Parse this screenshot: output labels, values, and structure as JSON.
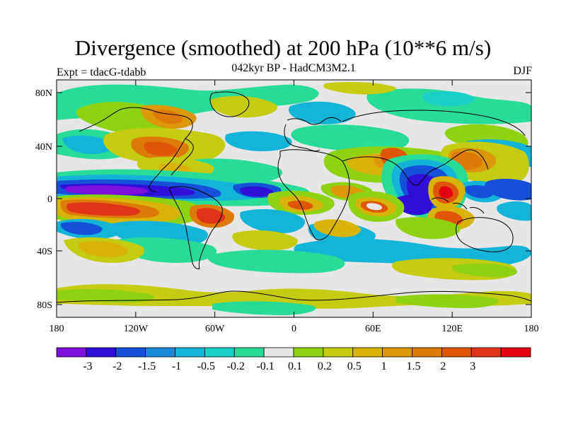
{
  "title": "Divergence (smoothed) at 200 hPa (10**6 m/s)",
  "subtitle": "042kyr BP - HadCM3M2.1",
  "left_label": "Expt = tdacG-tdabb",
  "right_label": "DJF",
  "axes": {
    "lon_ticks": [
      "180",
      "120W",
      "60W",
      "0",
      "60E",
      "120E",
      "180"
    ],
    "lat_ticks": [
      "80N",
      "40N",
      "0",
      "40S",
      "80S"
    ]
  },
  "colorbar": {
    "colors": [
      "#7d0fd8",
      "#3010d8",
      "#1450d8",
      "#1a8ad6",
      "#14b4d8",
      "#18d0c8",
      "#28dc98",
      "#e6e6e6",
      "#8ed212",
      "#c4cc10",
      "#d8b408",
      "#dc9808",
      "#de7a08",
      "#e05608",
      "#e03418",
      "#e00010"
    ],
    "labels": [
      "-3",
      "-2",
      "-1.5",
      "-1",
      "-0.5",
      "-0.2",
      "-0.1",
      "0.1",
      "0.2",
      "0.5",
      "1",
      "1.5",
      "2",
      "3"
    ]
  },
  "map_colors": {
    "neutral": "#e6e6e6",
    "v_strong_neg": "#7d0fd8",
    "strong_neg": "#3010d8",
    "mid_neg": "#1450d8",
    "neg": "#1a8ad6",
    "light_neg": "#14b4d8",
    "teal": "#18d0c8",
    "weak_neg": "#28dc98",
    "weak_pos": "#8ed212",
    "light_pos": "#c4cc10",
    "pos": "#d8b408",
    "mid_pos": "#dc9808",
    "orange": "#de7a08",
    "strong_pos": "#e05608",
    "v_strong_pos": "#e03418",
    "red": "#e00010"
  }
}
